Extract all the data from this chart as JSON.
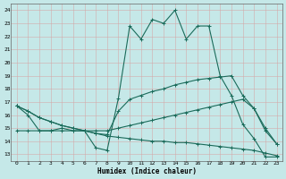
{
  "xlabel": "Humidex (Indice chaleur)",
  "xlim": [
    -0.5,
    23.5
  ],
  "ylim": [
    12.5,
    24.5
  ],
  "yticks": [
    13,
    14,
    15,
    16,
    17,
    18,
    19,
    20,
    21,
    22,
    23,
    24
  ],
  "xticks": [
    0,
    1,
    2,
    3,
    4,
    5,
    6,
    7,
    8,
    9,
    10,
    11,
    12,
    13,
    14,
    15,
    16,
    17,
    18,
    19,
    20,
    21,
    22,
    23
  ],
  "bg_color": "#c5e8e8",
  "grid_color": "#aacece",
  "line_color": "#1a6b5a",
  "line1_y": [
    16.7,
    16.0,
    14.8,
    14.8,
    15.0,
    14.8,
    14.8,
    13.5,
    13.3,
    17.3,
    22.8,
    21.8,
    23.3,
    23.0,
    24.0,
    21.8,
    22.8,
    22.8,
    19.0,
    17.5,
    15.3,
    14.2,
    12.8,
    12.8
  ],
  "line2_y": [
    16.7,
    16.3,
    15.8,
    15.5,
    15.2,
    15.0,
    14.8,
    14.6,
    14.5,
    16.3,
    17.2,
    17.5,
    17.8,
    18.0,
    18.3,
    18.5,
    18.7,
    18.8,
    18.9,
    19.0,
    17.5,
    16.5,
    14.8,
    13.8
  ],
  "line3_y": [
    14.8,
    14.8,
    14.8,
    14.8,
    14.8,
    14.8,
    14.8,
    14.8,
    14.8,
    15.0,
    15.2,
    15.4,
    15.6,
    15.8,
    16.0,
    16.2,
    16.4,
    16.6,
    16.8,
    17.0,
    17.2,
    16.5,
    15.0,
    13.8
  ],
  "line4_y": [
    16.7,
    16.3,
    15.8,
    15.5,
    15.2,
    15.0,
    14.8,
    14.6,
    14.4,
    14.3,
    14.2,
    14.1,
    14.0,
    14.0,
    13.9,
    13.9,
    13.8,
    13.7,
    13.6,
    13.5,
    13.4,
    13.3,
    13.1,
    12.9
  ]
}
